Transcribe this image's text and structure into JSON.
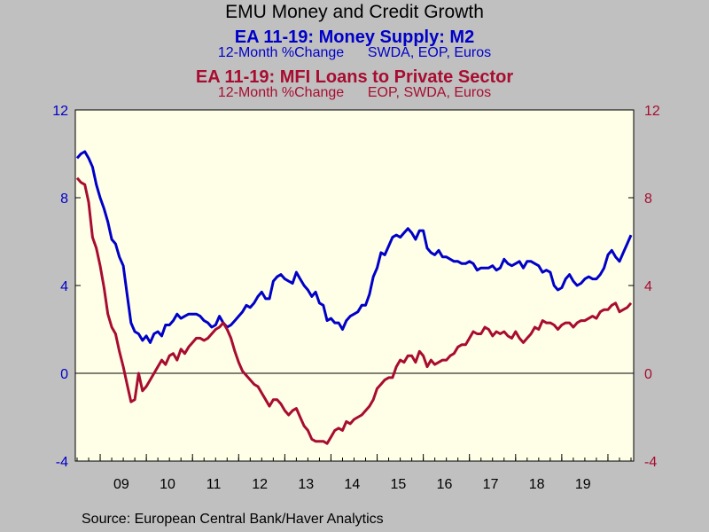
{
  "header": {
    "title": "EMU Money and Credit Growth",
    "series1_title": "EA 11-19: Money Supply: M2",
    "series1_subtitle": "12-Month %Change      SWDA, EOP, Euros",
    "series2_title": "EA 11-19: MFI Loans to Private Sector",
    "series2_subtitle": "12-Month %Change      EOP, SWDA, Euros"
  },
  "footer": {
    "source": "Source:  European Central Bank/Haver Analytics"
  },
  "colors": {
    "plot_bg": "#ffffe8",
    "page_bg": "#c0c0c0",
    "m2": "#0000c8",
    "loans": "#a80c30"
  },
  "chart_data": {
    "type": "line",
    "x_start": "2008-07",
    "x_end": "2019-06",
    "x_tick_labels": [
      "09",
      "10",
      "11",
      "12",
      "13",
      "14",
      "15",
      "16",
      "17",
      "18",
      "19"
    ],
    "ylim": [
      -4,
      12
    ],
    "yticks": [
      -4,
      0,
      4,
      8,
      12
    ],
    "left_axis_color": "#0000c8",
    "right_axis_color": "#a80c30",
    "zero_line": true,
    "series": [
      {
        "name": "EA 11-19: Money Supply: M2",
        "color": "#0000c8",
        "axis": "left",
        "values": [
          9.8,
          10.0,
          10.1,
          9.8,
          9.4,
          8.6,
          8.0,
          7.5,
          6.9,
          6.1,
          5.9,
          5.3,
          4.9,
          3.6,
          2.3,
          1.9,
          1.8,
          1.5,
          1.7,
          1.4,
          1.8,
          1.9,
          1.7,
          2.2,
          2.2,
          2.4,
          2.7,
          2.5,
          2.6,
          2.7,
          2.7,
          2.7,
          2.6,
          2.4,
          2.3,
          2.1,
          2.2,
          2.6,
          2.3,
          2.1,
          2.2,
          2.4,
          2.6,
          2.8,
          3.1,
          3.0,
          3.2,
          3.5,
          3.7,
          3.4,
          3.4,
          4.2,
          4.4,
          4.5,
          4.3,
          4.2,
          4.1,
          4.6,
          4.3,
          4.0,
          3.8,
          3.5,
          3.7,
          3.2,
          3.1,
          2.4,
          2.5,
          2.3,
          2.3,
          2.0,
          2.4,
          2.6,
          2.7,
          2.8,
          3.1,
          3.1,
          3.6,
          4.4,
          4.8,
          5.5,
          5.4,
          5.8,
          6.2,
          6.3,
          6.2,
          6.4,
          6.6,
          6.4,
          6.1,
          6.5,
          6.5,
          5.7,
          5.5,
          5.4,
          5.6,
          5.3,
          5.3,
          5.2,
          5.1,
          5.1,
          5.0,
          5.0,
          5.1,
          5.0,
          4.7,
          4.8,
          4.8,
          4.8,
          4.9,
          4.7,
          4.8,
          5.2,
          5.0,
          4.9,
          5.0,
          5.1,
          4.8,
          5.1,
          5.1,
          5.0,
          4.9,
          4.6,
          4.7,
          4.6,
          4.0,
          3.8,
          3.9,
          4.3,
          4.5,
          4.2,
          4.0,
          4.1,
          4.3,
          4.4,
          4.3,
          4.3,
          4.5,
          4.8,
          5.4,
          5.6,
          5.3,
          5.1,
          5.5,
          5.9,
          6.3
        ]
      },
      {
        "name": "EA 11-19: MFI Loans to Private Sector",
        "color": "#a80c30",
        "axis": "right",
        "values": [
          8.9,
          8.7,
          8.6,
          7.8,
          6.2,
          5.7,
          4.9,
          3.9,
          2.7,
          2.1,
          1.8,
          1.0,
          0.3,
          -0.5,
          -1.3,
          -1.2,
          0.0,
          -0.8,
          -0.6,
          -0.3,
          0.0,
          0.3,
          0.6,
          0.4,
          0.8,
          0.9,
          0.6,
          1.1,
          0.9,
          1.2,
          1.4,
          1.6,
          1.6,
          1.5,
          1.6,
          1.8,
          2.0,
          2.1,
          2.3,
          2.0,
          1.6,
          1.0,
          0.5,
          0.1,
          -0.1,
          -0.3,
          -0.5,
          -0.6,
          -0.9,
          -1.2,
          -1.5,
          -1.2,
          -1.2,
          -1.4,
          -1.7,
          -1.9,
          -1.7,
          -1.6,
          -2.0,
          -2.4,
          -2.6,
          -3.0,
          -3.1,
          -3.1,
          -3.1,
          -3.2,
          -2.9,
          -2.6,
          -2.5,
          -2.6,
          -2.2,
          -2.3,
          -2.1,
          -2.0,
          -1.9,
          -1.7,
          -1.5,
          -1.2,
          -0.7,
          -0.5,
          -0.3,
          -0.2,
          -0.2,
          0.3,
          0.6,
          0.5,
          0.8,
          0.8,
          0.5,
          1.0,
          0.8,
          0.3,
          0.6,
          0.4,
          0.5,
          0.6,
          0.6,
          0.8,
          0.9,
          1.2,
          1.3,
          1.3,
          1.6,
          1.9,
          1.8,
          1.8,
          2.1,
          2.0,
          1.7,
          1.9,
          1.8,
          1.9,
          1.7,
          1.6,
          1.9,
          1.6,
          1.4,
          1.6,
          1.8,
          2.1,
          2.0,
          2.4,
          2.3,
          2.3,
          2.2,
          2.0,
          2.2,
          2.3,
          2.3,
          2.1,
          2.3,
          2.4,
          2.4,
          2.5,
          2.6,
          2.5,
          2.8,
          2.9,
          2.9,
          3.1,
          3.2,
          2.8,
          2.9,
          3.0,
          3.2
        ]
      }
    ]
  }
}
